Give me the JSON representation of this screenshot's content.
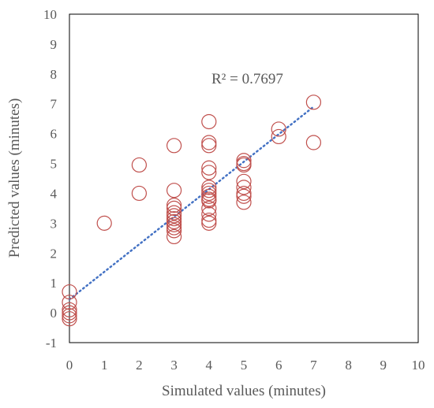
{
  "chart_data": {
    "type": "scatter",
    "xlabel": "Simulated values (minutes)",
    "ylabel": "Predicted values (minutes)",
    "xlim": [
      0,
      10
    ],
    "ylim": [
      -1,
      10
    ],
    "xticks": [
      "0",
      "1",
      "2",
      "3",
      "4",
      "5",
      "6",
      "7",
      "8",
      "9",
      "10"
    ],
    "yticks": [
      "-1",
      "0",
      "1",
      "2",
      "3",
      "4",
      "5",
      "6",
      "7",
      "8",
      "9",
      "10"
    ],
    "grid": false,
    "annotation": "R² = 0.7697",
    "trendline": {
      "style": "dotted",
      "color": "#4472c4",
      "from": [
        0,
        0.45
      ],
      "to": [
        7,
        6.9
      ]
    },
    "marker_color": "#c0504d",
    "series": [
      {
        "marker": "open-circle",
        "points": [
          [
            0,
            0.7
          ],
          [
            0,
            0.35
          ],
          [
            0,
            0.1
          ],
          [
            0,
            0.0
          ],
          [
            0,
            -0.1
          ],
          [
            0,
            -0.2
          ],
          [
            1,
            3.0
          ],
          [
            2,
            4.95
          ],
          [
            2,
            4.0
          ],
          [
            3,
            5.6
          ],
          [
            3,
            4.1
          ],
          [
            3,
            3.6
          ],
          [
            3,
            3.5
          ],
          [
            3,
            3.35
          ],
          [
            3,
            3.25
          ],
          [
            3,
            3.15
          ],
          [
            3,
            3.05
          ],
          [
            3,
            2.95
          ],
          [
            3,
            2.85
          ],
          [
            3,
            2.75
          ],
          [
            3,
            2.55
          ],
          [
            4,
            6.4
          ],
          [
            4,
            5.7
          ],
          [
            4,
            5.6
          ],
          [
            4,
            4.85
          ],
          [
            4,
            4.7
          ],
          [
            4,
            4.2
          ],
          [
            4,
            4.1
          ],
          [
            4,
            4.0
          ],
          [
            4,
            3.9
          ],
          [
            4,
            3.8
          ],
          [
            4,
            3.75
          ],
          [
            4,
            3.5
          ],
          [
            4,
            3.3
          ],
          [
            4,
            3.1
          ],
          [
            4,
            3.0
          ],
          [
            5,
            5.1
          ],
          [
            5,
            5.0
          ],
          [
            5,
            4.95
          ],
          [
            5,
            4.4
          ],
          [
            5,
            4.2
          ],
          [
            5,
            4.0
          ],
          [
            5,
            3.9
          ],
          [
            5,
            3.7
          ],
          [
            6,
            6.15
          ],
          [
            6,
            5.9
          ],
          [
            7,
            7.05
          ],
          [
            7,
            5.7
          ]
        ]
      }
    ]
  }
}
